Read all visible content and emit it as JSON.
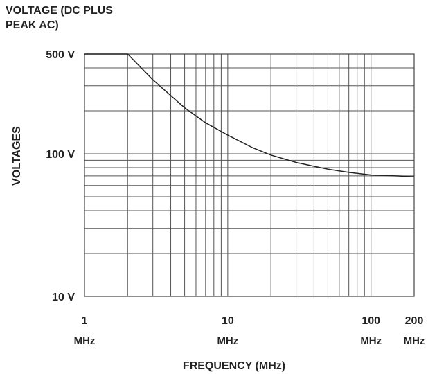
{
  "chart_data": {
    "type": "line",
    "title": "VOLTAGE (DC PLUS PEAK AC)",
    "title_lines": [
      "VOLTAGE (DC PLUS",
      "PEAK AC)"
    ],
    "ylabel": "VOLTAGES",
    "xlabel": "FREQUENCY (MHz)",
    "x_scale": "log",
    "y_scale": "log",
    "xlim": [
      1,
      200
    ],
    "ylim": [
      10,
      500
    ],
    "x_ticks": [
      {
        "value": 1,
        "label": "1",
        "unit": "MHz"
      },
      {
        "value": 10,
        "label": "10",
        "unit": "MHz"
      },
      {
        "value": 100,
        "label": "100",
        "unit": "MHz"
      },
      {
        "value": 200,
        "label": "200",
        "unit": "MHz"
      }
    ],
    "y_ticks": [
      {
        "value": 500,
        "label": "500 V"
      },
      {
        "value": 100,
        "label": "100 V"
      },
      {
        "value": 10,
        "label": "10 V"
      }
    ],
    "grid": true,
    "series": [
      {
        "x": [
          1,
          2,
          3,
          5,
          7,
          10,
          15,
          20,
          30,
          50,
          70,
          100,
          150,
          200
        ],
        "y": [
          500,
          500,
          330,
          210,
          165,
          135,
          110,
          98,
          87,
          78,
          74,
          71,
          70,
          69
        ]
      }
    ]
  }
}
